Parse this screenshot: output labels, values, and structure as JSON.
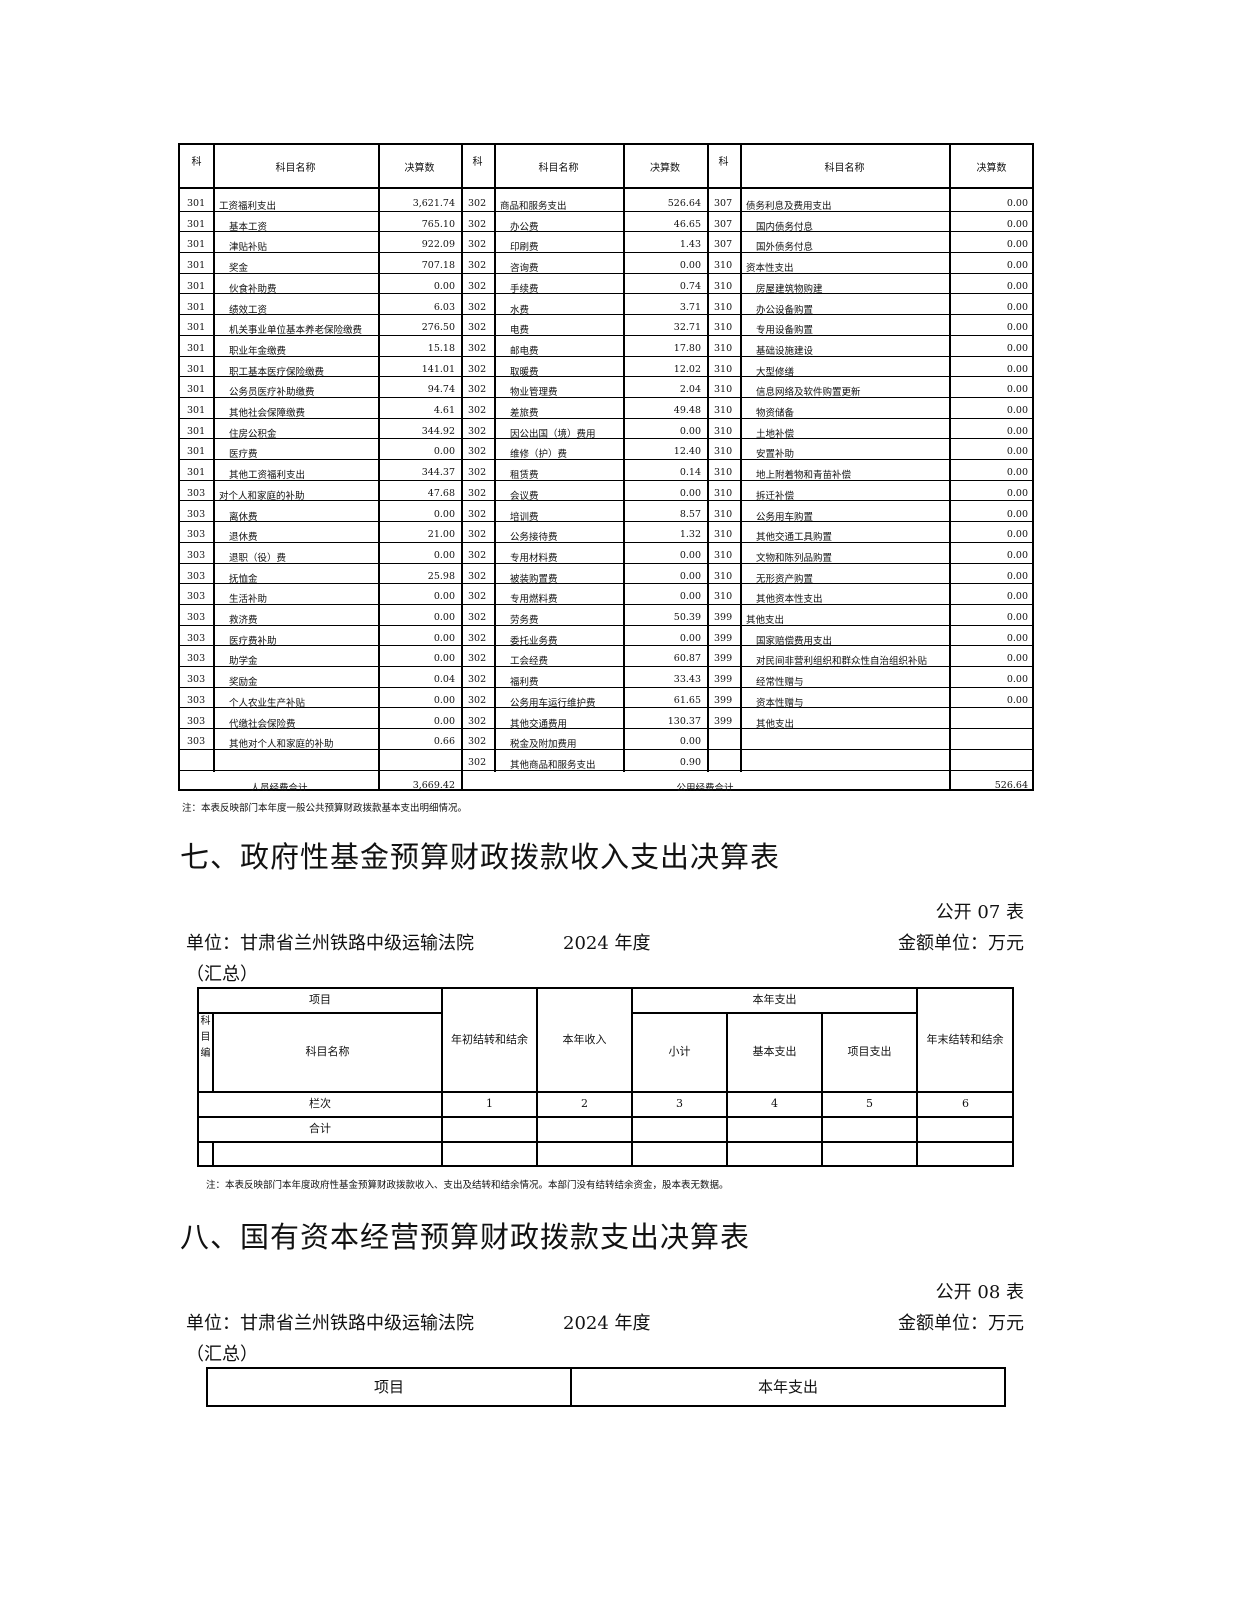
{
  "table6": {
    "headers": {
      "code": "科",
      "name": "科目名称",
      "value": "决算数"
    },
    "personnel": [
      [
        "301",
        "工资福利支出",
        "3,621.74",
        0
      ],
      [
        "301",
        "基本工资",
        "765.10",
        1
      ],
      [
        "301",
        "津贴补贴",
        "922.09",
        1
      ],
      [
        "301",
        "奖金",
        "707.18",
        1
      ],
      [
        "301",
        "伙食补助费",
        "0.00",
        1
      ],
      [
        "301",
        "绩效工资",
        "6.03",
        1
      ],
      [
        "301",
        "机关事业单位基本养老保险缴费",
        "276.50",
        1
      ],
      [
        "301",
        "职业年金缴费",
        "15.18",
        1
      ],
      [
        "301",
        "职工基本医疗保险缴费",
        "141.01",
        1
      ],
      [
        "301",
        "公务员医疗补助缴费",
        "94.74",
        1
      ],
      [
        "301",
        "其他社会保障缴费",
        "4.61",
        1
      ],
      [
        "301",
        "住房公积金",
        "344.92",
        1
      ],
      [
        "301",
        "医疗费",
        "0.00",
        1
      ],
      [
        "301",
        "其他工资福利支出",
        "344.37",
        1
      ],
      [
        "303",
        "对个人和家庭的补助",
        "47.68",
        0
      ],
      [
        "303",
        "离休费",
        "0.00",
        1
      ],
      [
        "303",
        "退休费",
        "21.00",
        1
      ],
      [
        "303",
        "退职（役）费",
        "0.00",
        1
      ],
      [
        "303",
        "抚恤金",
        "25.98",
        1
      ],
      [
        "303",
        "生活补助",
        "0.00",
        1
      ],
      [
        "303",
        "救济费",
        "0.00",
        1
      ],
      [
        "303",
        "医疗费补助",
        "0.00",
        1
      ],
      [
        "303",
        "助学金",
        "0.00",
        1
      ],
      [
        "303",
        "奖励金",
        "0.04",
        1
      ],
      [
        "303",
        "个人农业生产补贴",
        "0.00",
        1
      ],
      [
        "303",
        "代缴社会保险费",
        "0.00",
        1
      ],
      [
        "303",
        "其他对个人和家庭的补助",
        "0.66",
        1
      ],
      [
        "",
        "",
        "",
        1
      ]
    ],
    "goods": [
      [
        "302",
        "商品和服务支出",
        "526.64",
        0
      ],
      [
        "302",
        "办公费",
        "46.65",
        1
      ],
      [
        "302",
        "印刷费",
        "1.43",
        1
      ],
      [
        "302",
        "咨询费",
        "0.00",
        1
      ],
      [
        "302",
        "手续费",
        "0.74",
        1
      ],
      [
        "302",
        "水费",
        "3.71",
        1
      ],
      [
        "302",
        "电费",
        "32.71",
        1
      ],
      [
        "302",
        "邮电费",
        "17.80",
        1
      ],
      [
        "302",
        "取暖费",
        "12.02",
        1
      ],
      [
        "302",
        "物业管理费",
        "2.04",
        1
      ],
      [
        "302",
        "差旅费",
        "49.48",
        1
      ],
      [
        "302",
        "因公出国（境）费用",
        "0.00",
        1
      ],
      [
        "302",
        "维修（护）费",
        "12.40",
        1
      ],
      [
        "302",
        "租赁费",
        "0.14",
        1
      ],
      [
        "302",
        "会议费",
        "0.00",
        1
      ],
      [
        "302",
        "培训费",
        "8.57",
        1
      ],
      [
        "302",
        "公务接待费",
        "1.32",
        1
      ],
      [
        "302",
        "专用材料费",
        "0.00",
        1
      ],
      [
        "302",
        "被装购置费",
        "0.00",
        1
      ],
      [
        "302",
        "专用燃料费",
        "0.00",
        1
      ],
      [
        "302",
        "劳务费",
        "50.39",
        1
      ],
      [
        "302",
        "委托业务费",
        "0.00",
        1
      ],
      [
        "302",
        "工会经费",
        "60.87",
        1
      ],
      [
        "302",
        "福利费",
        "33.43",
        1
      ],
      [
        "302",
        "公务用车运行维护费",
        "61.65",
        1
      ],
      [
        "302",
        "其他交通费用",
        "130.37",
        1
      ],
      [
        "302",
        "税金及附加费用",
        "0.00",
        1
      ],
      [
        "302",
        "其他商品和服务支出",
        "0.90",
        1
      ]
    ],
    "other": [
      [
        "307",
        "债务利息及费用支出",
        "0.00",
        0
      ],
      [
        "307",
        "国内债务付息",
        "0.00",
        1
      ],
      [
        "307",
        "国外债务付息",
        "0.00",
        1
      ],
      [
        "310",
        "资本性支出",
        "0.00",
        0
      ],
      [
        "310",
        "房屋建筑物购建",
        "0.00",
        1
      ],
      [
        "310",
        "办公设备购置",
        "0.00",
        1
      ],
      [
        "310",
        "专用设备购置",
        "0.00",
        1
      ],
      [
        "310",
        "基础设施建设",
        "0.00",
        1
      ],
      [
        "310",
        "大型修缮",
        "0.00",
        1
      ],
      [
        "310",
        "信息网络及软件购置更新",
        "0.00",
        1
      ],
      [
        "310",
        "物资储备",
        "0.00",
        1
      ],
      [
        "310",
        "土地补偿",
        "0.00",
        1
      ],
      [
        "310",
        "安置补助",
        "0.00",
        1
      ],
      [
        "310",
        "地上附着物和青苗补偿",
        "0.00",
        1
      ],
      [
        "310",
        "拆迁补偿",
        "0.00",
        1
      ],
      [
        "310",
        "公务用车购置",
        "0.00",
        1
      ],
      [
        "310",
        "其他交通工具购置",
        "0.00",
        1
      ],
      [
        "310",
        "文物和陈列品购置",
        "0.00",
        1
      ],
      [
        "310",
        "无形资产购置",
        "0.00",
        1
      ],
      [
        "310",
        "其他资本性支出",
        "0.00",
        1
      ],
      [
        "399",
        "其他支出",
        "0.00",
        0
      ],
      [
        "399",
        "国家赔偿费用支出",
        "0.00",
        1
      ],
      [
        "399",
        "对民间非营利组织和群众性自治组织补贴",
        "0.00",
        1
      ],
      [
        "399",
        "经常性赠与",
        "0.00",
        1
      ],
      [
        "399",
        "资本性赠与",
        "0.00",
        1
      ],
      [
        "399",
        "其他支出",
        "",
        1
      ],
      [
        "",
        "",
        "",
        1
      ],
      [
        "",
        "",
        "",
        1
      ]
    ],
    "personnel_total_label": "人员经费合计",
    "personnel_total": "3,669.42",
    "public_total_label": "公用经费合计",
    "public_total": "526.64",
    "note": "注：本表反映部门本年度一般公共预算财政拨款基本支出明细情况。"
  },
  "section7": {
    "title": "七、政府性基金预算财政拨款收入支出决算表",
    "table_no": "公开 07 表",
    "unit": "单位：甘肃省兰州铁路中级运输法院",
    "year": "2024 年度",
    "money_unit": "金额单位：万元",
    "summary": "（汇总）",
    "headers": {
      "item": "项目",
      "code": "科目编",
      "name": "科目名称",
      "begin": "年初结转和结余",
      "income": "本年收入",
      "expense": "本年支出",
      "subtotal": "小计",
      "basic": "基本支出",
      "project": "项目支出",
      "end": "年末结转和结余"
    },
    "col_label": "栏次",
    "col_numbers": [
      "1",
      "2",
      "3",
      "4",
      "5",
      "6"
    ],
    "total_label": "合计",
    "note": "注：本表反映部门本年度政府性基金预算财政拨款收入、支出及结转和结余情况。本部门没有结转结余资金，股本表无数据。"
  },
  "section8": {
    "title": "八、国有资本经营预算财政拨款支出决算表",
    "table_no": "公开 08 表",
    "unit": "单位：甘肃省兰州铁路中级运输法院",
    "year": "2024 年度",
    "money_unit": "金额单位：万元",
    "summary": "（汇总）",
    "headers": {
      "item": "项目",
      "expense": "本年支出"
    }
  }
}
